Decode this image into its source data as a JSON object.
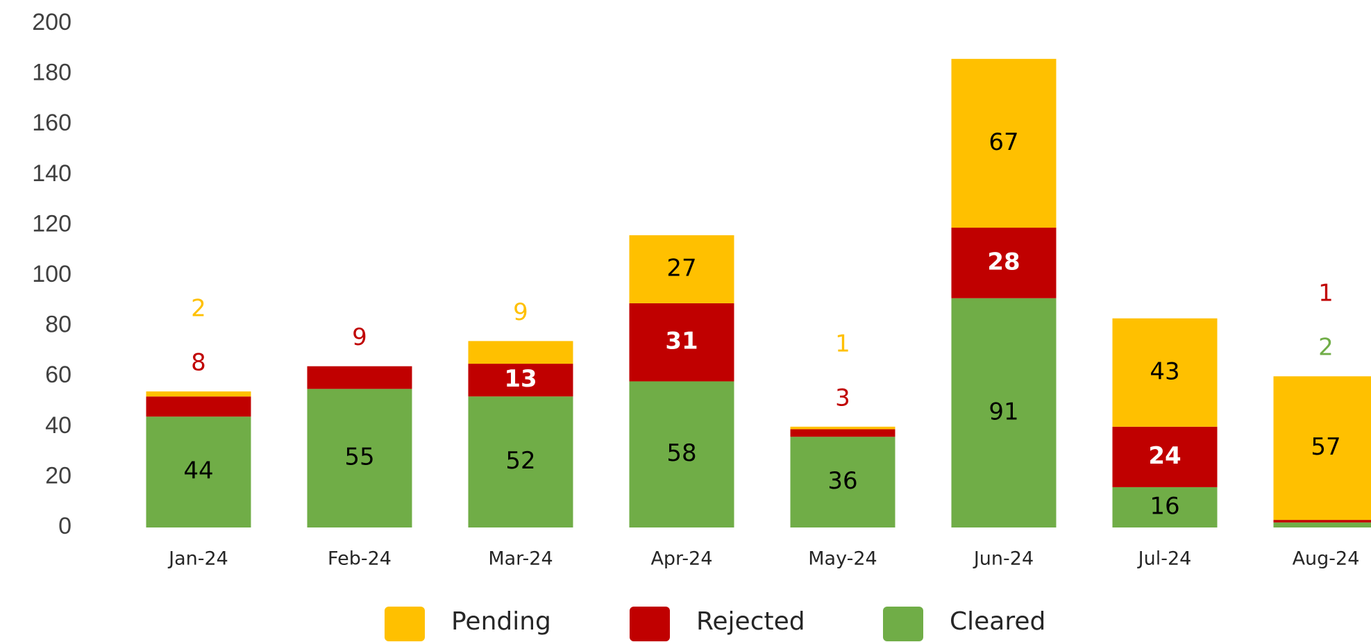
{
  "chart_data": {
    "type": "stacked_bar",
    "categories": [
      "Jan-24",
      "Feb-24",
      "Mar-24",
      "Apr-24",
      "May-24",
      "Jun-24",
      "Jul-24",
      "Aug-24"
    ],
    "series": [
      {
        "name": "Cleared",
        "color": "#70ad47",
        "values": [
          44,
          55,
          52,
          58,
          36,
          91,
          16,
          2
        ]
      },
      {
        "name": "Rejected",
        "color": "#c00000",
        "values": [
          8,
          9,
          13,
          31,
          3,
          28,
          24,
          1
        ]
      },
      {
        "name": "Pending",
        "color": "#ffc000",
        "values": [
          2,
          null,
          9,
          27,
          1,
          67,
          43,
          57
        ]
      }
    ],
    "ylim": [
      0,
      200
    ],
    "yticks": [
      0,
      20,
      40,
      60,
      80,
      100,
      120,
      140,
      160,
      180,
      200
    ],
    "grid": false,
    "legend": "bottom"
  }
}
